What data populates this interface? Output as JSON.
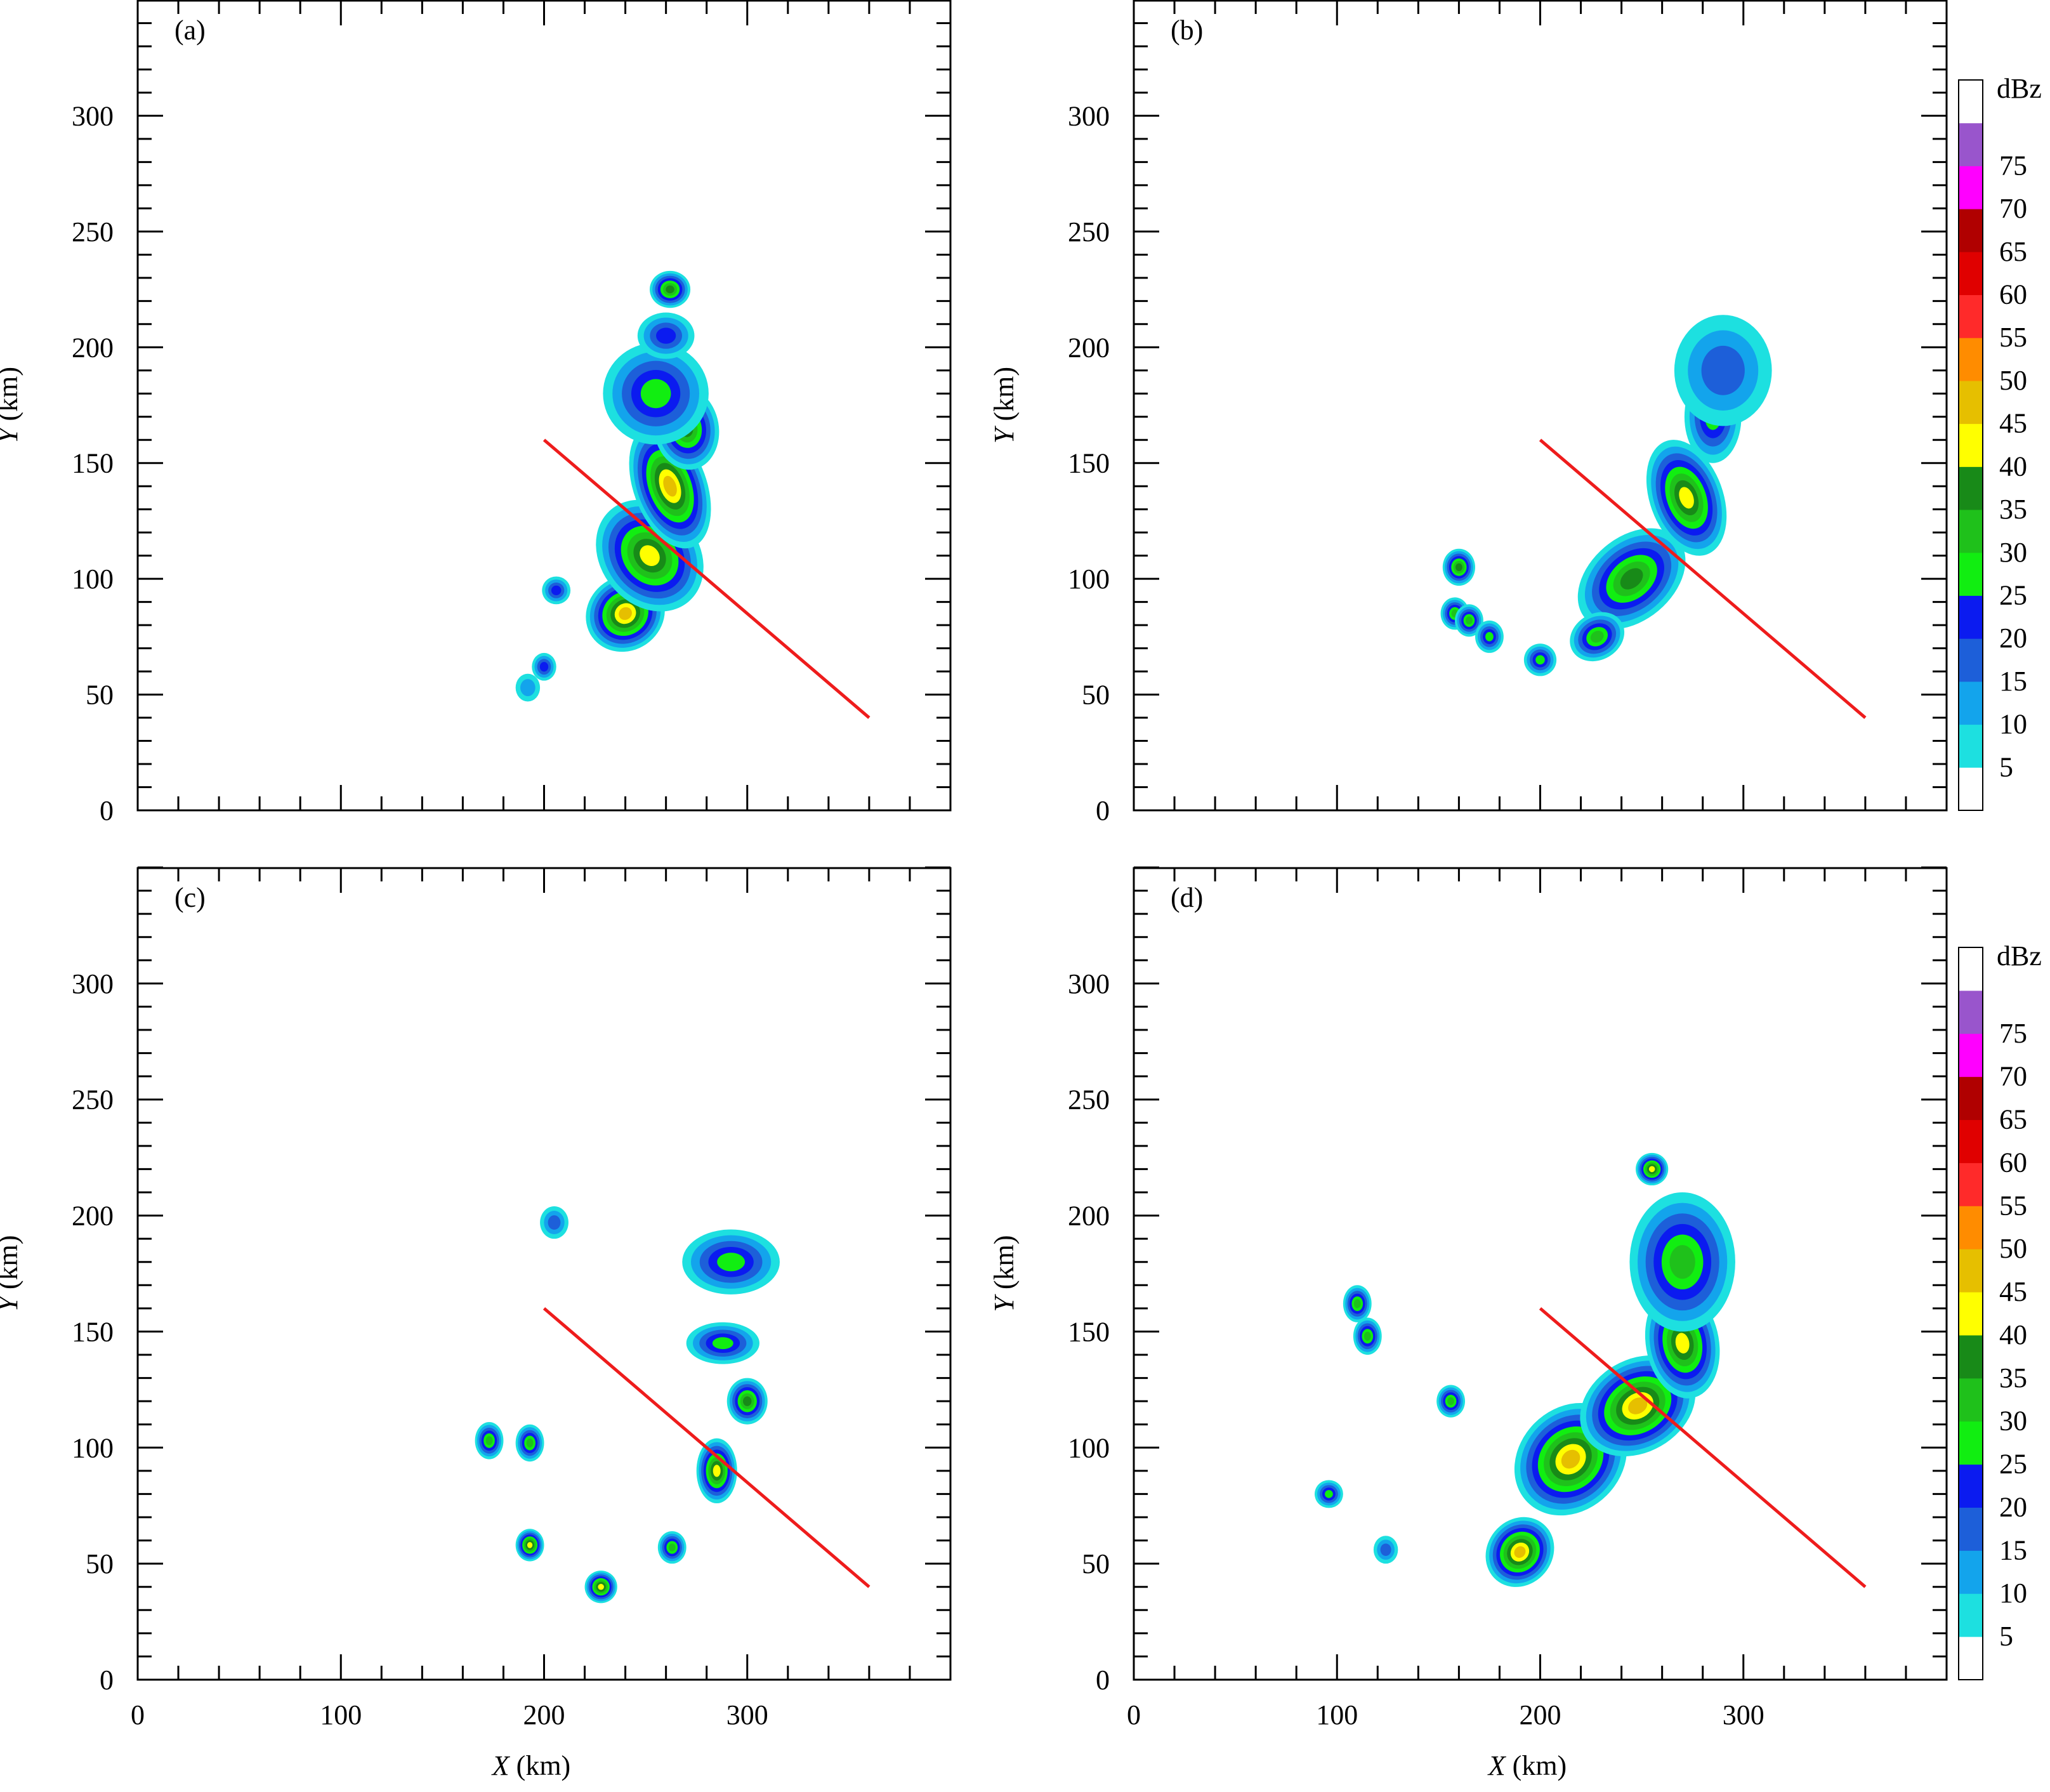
{
  "figure": {
    "colorbar_unit": "dBz",
    "colorbar_labels": [
      "5",
      "10",
      "15",
      "20",
      "25",
      "30",
      "35",
      "40",
      "45",
      "50",
      "55",
      "60",
      "65",
      "70",
      "75"
    ],
    "colorbar_colors": [
      "#ffffff",
      "#1de0e0",
      "#13a4ec",
      "#1d5fd9",
      "#0b1bf0",
      "#11ee11",
      "#1fc11b",
      "#188a18",
      "#ffff00",
      "#e6bf00",
      "#ff8c00",
      "#ff2a2a",
      "#e00000",
      "#b00000",
      "#ff00ff",
      "#9955cc",
      "#ffffff"
    ],
    "panel_labels": [
      "(a)",
      "(b)",
      "(c)",
      "(d)"
    ],
    "x_axis_label_italic": "X",
    "x_axis_label_unit": " (km)",
    "y_axis_label_italic": "Y",
    "y_axis_label_unit": " (km)",
    "red_line_color": "#ee1c1c"
  },
  "chart_data": [
    {
      "type": "heatmap",
      "panel": "(a)",
      "xlim": [
        0,
        400
      ],
      "ylim": [
        0,
        350
      ],
      "x_ticks": [
        0,
        100,
        200,
        300
      ],
      "y_ticks": [
        0,
        50,
        100,
        150,
        200,
        250,
        300
      ],
      "xlabel": "",
      "ylabel": "Y (km)",
      "colorbar": false,
      "cross_section_line": {
        "x": [
          200,
          360
        ],
        "y": [
          160,
          40
        ]
      },
      "reflectivity_cells": [
        {
          "x": 240,
          "y": 85,
          "rx": 16,
          "ry": 12,
          "rot": -35,
          "dbz": 45
        },
        {
          "x": 252,
          "y": 110,
          "rx": 20,
          "ry": 22,
          "rot": -40,
          "dbz": 40
        },
        {
          "x": 262,
          "y": 140,
          "rx": 14,
          "ry": 24,
          "rot": -20,
          "dbz": 45
        },
        {
          "x": 270,
          "y": 165,
          "rx": 12,
          "ry": 14,
          "rot": -10,
          "dbz": 35
        },
        {
          "x": 255,
          "y": 180,
          "rx": 22,
          "ry": 18,
          "rot": 0,
          "dbz": 25
        },
        {
          "x": 260,
          "y": 205,
          "rx": 10,
          "ry": 6,
          "rot": 0,
          "dbz": 20
        },
        {
          "x": 262,
          "y": 225,
          "rx": 6,
          "ry": 4,
          "rot": 0,
          "dbz": 35
        },
        {
          "x": 200,
          "y": 62,
          "rx": 2,
          "ry": 2,
          "rot": 0,
          "dbz": 20
        },
        {
          "x": 192,
          "y": 53,
          "rx": 2,
          "ry": 2,
          "rot": 0,
          "dbz": 10
        },
        {
          "x": 206,
          "y": 95,
          "rx": 3,
          "ry": 2,
          "rot": 0,
          "dbz": 20
        }
      ]
    },
    {
      "type": "heatmap",
      "panel": "(b)",
      "xlim": [
        0,
        400
      ],
      "ylim": [
        0,
        350
      ],
      "x_ticks": [
        0,
        100,
        200,
        300
      ],
      "y_ticks": [
        0,
        50,
        100,
        150,
        200,
        250,
        300
      ],
      "xlabel": "",
      "ylabel": "Y (km)",
      "colorbar": true,
      "cross_section_line": {
        "x": [
          200,
          360
        ],
        "y": [
          160,
          40
        ]
      },
      "reflectivity_cells": [
        {
          "x": 245,
          "y": 100,
          "rx": 26,
          "ry": 14,
          "rot": -40,
          "dbz": 35
        },
        {
          "x": 272,
          "y": 135,
          "rx": 14,
          "ry": 22,
          "rot": -20,
          "dbz": 40
        },
        {
          "x": 285,
          "y": 170,
          "rx": 10,
          "ry": 16,
          "rot": 0,
          "dbz": 25
        },
        {
          "x": 290,
          "y": 190,
          "rx": 20,
          "ry": 20,
          "rot": 0,
          "dbz": 15
        },
        {
          "x": 228,
          "y": 75,
          "rx": 10,
          "ry": 6,
          "rot": -30,
          "dbz": 30
        },
        {
          "x": 160,
          "y": 105,
          "rx": 4,
          "ry": 4,
          "rot": 0,
          "dbz": 35
        },
        {
          "x": 158,
          "y": 85,
          "rx": 3,
          "ry": 3,
          "rot": 0,
          "dbz": 30
        },
        {
          "x": 165,
          "y": 82,
          "rx": 3,
          "ry": 3,
          "rot": 0,
          "dbz": 30
        },
        {
          "x": 175,
          "y": 75,
          "rx": 3,
          "ry": 3,
          "rot": 0,
          "dbz": 25
        },
        {
          "x": 200,
          "y": 65,
          "rx": 4,
          "ry": 3,
          "rot": 0,
          "dbz": 25
        }
      ]
    },
    {
      "type": "heatmap",
      "panel": "(c)",
      "xlim": [
        0,
        400
      ],
      "ylim": [
        0,
        350
      ],
      "x_ticks": [
        0,
        100,
        200,
        300
      ],
      "y_ticks": [
        0,
        50,
        100,
        150,
        200,
        250,
        300
      ],
      "xlabel": "X (km)",
      "ylabel": "Y (km)",
      "colorbar": false,
      "cross_section_line": {
        "x": [
          200,
          360
        ],
        "y": [
          160,
          40
        ]
      },
      "reflectivity_cells": [
        {
          "x": 292,
          "y": 180,
          "rx": 20,
          "ry": 10,
          "rot": 0,
          "dbz": 25
        },
        {
          "x": 288,
          "y": 145,
          "rx": 14,
          "ry": 5,
          "rot": 0,
          "dbz": 25
        },
        {
          "x": 300,
          "y": 120,
          "rx": 6,
          "ry": 6,
          "rot": 0,
          "dbz": 35
        },
        {
          "x": 285,
          "y": 90,
          "rx": 6,
          "ry": 10,
          "rot": 0,
          "dbz": 40
        },
        {
          "x": 205,
          "y": 197,
          "rx": 3,
          "ry": 3,
          "rot": 0,
          "dbz": 15
        },
        {
          "x": 173,
          "y": 103,
          "rx": 3,
          "ry": 4,
          "rot": 0,
          "dbz": 30
        },
        {
          "x": 193,
          "y": 102,
          "rx": 3,
          "ry": 4,
          "rot": 0,
          "dbz": 30
        },
        {
          "x": 193,
          "y": 58,
          "rx": 3,
          "ry": 3,
          "rot": 0,
          "dbz": 40
        },
        {
          "x": 228,
          "y": 40,
          "rx": 4,
          "ry": 3,
          "rot": 0,
          "dbz": 40
        },
        {
          "x": 263,
          "y": 57,
          "rx": 3,
          "ry": 3,
          "rot": 0,
          "dbz": 30
        }
      ]
    },
    {
      "type": "heatmap",
      "panel": "(d)",
      "xlim": [
        0,
        400
      ],
      "ylim": [
        0,
        350
      ],
      "x_ticks": [
        0,
        100,
        200,
        300
      ],
      "y_ticks": [
        0,
        50,
        100,
        150,
        200,
        250,
        300
      ],
      "xlabel": "X (km)",
      "ylabel": "Y (km)",
      "colorbar": true,
      "cross_section_line": {
        "x": [
          200,
          360
        ],
        "y": [
          160,
          40
        ]
      },
      "reflectivity_cells": [
        {
          "x": 190,
          "y": 55,
          "rx": 14,
          "ry": 10,
          "rot": -50,
          "dbz": 45
        },
        {
          "x": 215,
          "y": 95,
          "rx": 26,
          "ry": 18,
          "rot": -45,
          "dbz": 45
        },
        {
          "x": 248,
          "y": 118,
          "rx": 26,
          "ry": 16,
          "rot": -30,
          "dbz": 45
        },
        {
          "x": 270,
          "y": 145,
          "rx": 14,
          "ry": 20,
          "rot": -10,
          "dbz": 40
        },
        {
          "x": 270,
          "y": 180,
          "rx": 22,
          "ry": 26,
          "rot": 0,
          "dbz": 30
        },
        {
          "x": 255,
          "y": 220,
          "rx": 4,
          "ry": 3,
          "rot": 0,
          "dbz": 40
        },
        {
          "x": 110,
          "y": 162,
          "rx": 3,
          "ry": 4,
          "rot": 0,
          "dbz": 30
        },
        {
          "x": 115,
          "y": 148,
          "rx": 3,
          "ry": 4,
          "rot": 0,
          "dbz": 30
        },
        {
          "x": 156,
          "y": 120,
          "rx": 3,
          "ry": 3,
          "rot": 0,
          "dbz": 30
        },
        {
          "x": 96,
          "y": 80,
          "rx": 3,
          "ry": 2,
          "rot": 0,
          "dbz": 25
        },
        {
          "x": 124,
          "y": 56,
          "rx": 2,
          "ry": 2,
          "rot": 0,
          "dbz": 15
        }
      ]
    }
  ]
}
